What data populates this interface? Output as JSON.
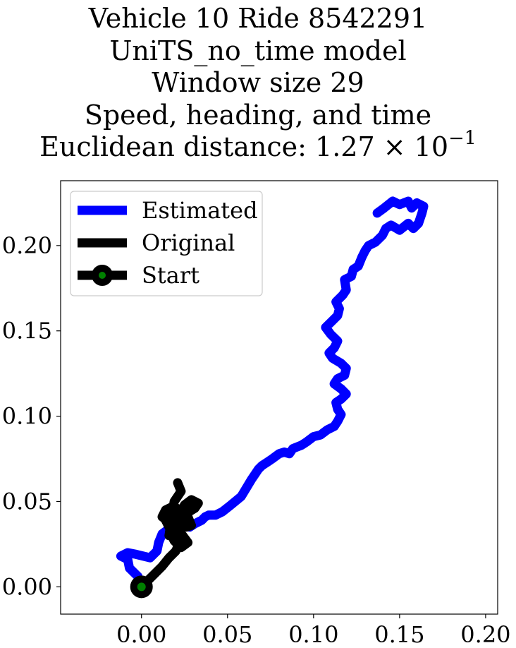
{
  "chart_data": {
    "type": "line",
    "title_lines": [
      "Vehicle 10 Ride 8542291",
      "UniTS_no_time model",
      "Window size 29",
      "Speed, heading, and time"
    ],
    "title_metric": {
      "label": "Euclidean distance: 1.27",
      "times": "×",
      "base": "10",
      "exponent": "−1"
    },
    "xlabel": "",
    "ylabel": "",
    "xlim": [
      -0.047,
      0.207
    ],
    "ylim": [
      -0.016,
      0.238
    ],
    "x_ticks": [
      {
        "value": 0.0,
        "label": "0.00"
      },
      {
        "value": 0.05,
        "label": "0.05"
      },
      {
        "value": 0.1,
        "label": "0.10"
      },
      {
        "value": 0.15,
        "label": "0.15"
      },
      {
        "value": 0.2,
        "label": "0.20"
      }
    ],
    "y_ticks": [
      {
        "value": 0.0,
        "label": "0.00"
      },
      {
        "value": 0.05,
        "label": "0.05"
      },
      {
        "value": 0.1,
        "label": "0.10"
      },
      {
        "value": 0.15,
        "label": "0.15"
      },
      {
        "value": 0.2,
        "label": "0.20"
      }
    ],
    "grid": false,
    "legend_position": "top-left",
    "series": [
      {
        "name": "Estimated",
        "color": "#0000ff",
        "x": [
          0.0,
          -0.002,
          -0.007,
          -0.008,
          -0.012,
          -0.008,
          -0.003,
          0.005,
          0.009,
          0.01,
          0.012,
          0.016,
          0.02,
          0.024,
          0.028,
          0.031,
          0.035,
          0.037,
          0.039,
          0.043,
          0.047,
          0.052,
          0.058,
          0.061,
          0.064,
          0.066,
          0.068,
          0.07,
          0.073,
          0.076,
          0.08,
          0.083,
          0.086,
          0.088,
          0.093,
          0.096,
          0.1,
          0.104,
          0.108,
          0.112,
          0.114,
          0.116,
          0.114,
          0.113,
          0.116,
          0.119,
          0.116,
          0.112,
          0.114,
          0.118,
          0.119,
          0.116,
          0.111,
          0.109,
          0.112,
          0.114,
          0.11,
          0.107,
          0.111,
          0.114,
          0.115,
          0.113,
          0.117,
          0.119,
          0.118,
          0.122,
          0.123,
          0.126,
          0.128,
          0.13,
          0.132,
          0.136,
          0.14,
          0.142,
          0.145,
          0.15,
          0.155,
          0.158,
          0.161,
          0.163,
          0.164,
          0.16,
          0.157,
          0.155,
          0.15,
          0.146,
          0.141,
          0.137
        ],
        "y": [
          0.0,
          0.006,
          0.011,
          0.016,
          0.018,
          0.02,
          0.019,
          0.017,
          0.021,
          0.026,
          0.031,
          0.034,
          0.035,
          0.036,
          0.035,
          0.037,
          0.039,
          0.041,
          0.042,
          0.042,
          0.044,
          0.048,
          0.053,
          0.058,
          0.063,
          0.066,
          0.069,
          0.071,
          0.073,
          0.075,
          0.078,
          0.079,
          0.078,
          0.081,
          0.083,
          0.085,
          0.088,
          0.089,
          0.092,
          0.094,
          0.097,
          0.101,
          0.104,
          0.108,
          0.11,
          0.113,
          0.116,
          0.119,
          0.122,
          0.124,
          0.128,
          0.131,
          0.134,
          0.137,
          0.14,
          0.144,
          0.148,
          0.152,
          0.156,
          0.159,
          0.163,
          0.167,
          0.171,
          0.174,
          0.18,
          0.182,
          0.186,
          0.188,
          0.193,
          0.197,
          0.2,
          0.202,
          0.206,
          0.21,
          0.212,
          0.209,
          0.213,
          0.21,
          0.213,
          0.219,
          0.223,
          0.225,
          0.222,
          0.226,
          0.224,
          0.226,
          0.222,
          0.219
        ]
      },
      {
        "name": "Original",
        "color": "#000000",
        "x": [
          0.0,
          0.004,
          0.008,
          0.012,
          0.016,
          0.02,
          0.022,
          0.02,
          0.016,
          0.014,
          0.018,
          0.022,
          0.026,
          0.029,
          0.027,
          0.023,
          0.018,
          0.014,
          0.012,
          0.016,
          0.021,
          0.026,
          0.031,
          0.033,
          0.029,
          0.025,
          0.023,
          0.025,
          0.021,
          0.017,
          0.019,
          0.023,
          0.027,
          0.024,
          0.02,
          0.016,
          0.019,
          0.023,
          0.021
        ],
        "y": [
          0.0,
          0.004,
          0.008,
          0.012,
          0.017,
          0.021,
          0.026,
          0.031,
          0.035,
          0.039,
          0.042,
          0.038,
          0.035,
          0.036,
          0.041,
          0.045,
          0.047,
          0.045,
          0.041,
          0.038,
          0.04,
          0.043,
          0.046,
          0.049,
          0.051,
          0.048,
          0.044,
          0.04,
          0.036,
          0.031,
          0.027,
          0.023,
          0.026,
          0.03,
          0.034,
          0.03,
          0.05,
          0.056,
          0.061
        ]
      }
    ],
    "start_point": {
      "name": "Start",
      "x": 0.0,
      "y": 0.0,
      "edge_color": "#000000",
      "face_color": "#008000"
    }
  }
}
